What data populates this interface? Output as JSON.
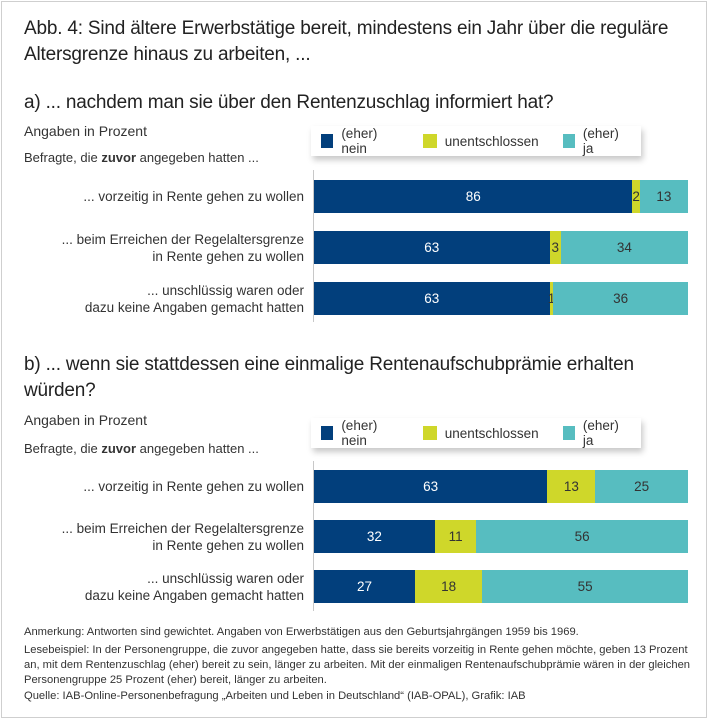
{
  "title": "Abb. 4: Sind ältere Erwerbstätige bereit, mindestens ein Jahr über die reguläre Altersgrenze hinaus zu arbeiten, ...",
  "colors": {
    "nein": "#023f7c",
    "unentschlossen": "#cfd72a",
    "ja": "#57bdc0",
    "label_on_dark": "#ffffff",
    "label_on_light": "#333333"
  },
  "legend": [
    "(eher) nein",
    "unentschlossen",
    "(eher) ja"
  ],
  "chart_data": [
    {
      "type": "bar",
      "orientation": "horizontal",
      "stacked": true,
      "title": "a) ... nachdem man sie über den Rentenzuschlag informiert hat?",
      "unit_label": "Angaben in Prozent",
      "group_prefix": "Befragte, die ",
      "group_bold": "zuvor",
      "group_suffix": " angegeben hatten ...",
      "categories": [
        "... vorzeitig in Rente gehen zu wollen",
        "... beim Erreichen der Regelaltersgrenze\nin Rente gehen zu wollen",
        "... unschlüssig waren oder\ndazu keine Angaben gemacht hatten"
      ],
      "series": [
        {
          "name": "(eher) nein",
          "values": [
            86,
            63,
            63
          ]
        },
        {
          "name": "unentschlossen",
          "values": [
            2,
            3,
            1
          ]
        },
        {
          "name": "(eher) ja",
          "values": [
            13,
            34,
            36
          ]
        }
      ],
      "xlim": [
        0,
        100
      ],
      "legend_position": "top-right",
      "grid": false
    },
    {
      "type": "bar",
      "orientation": "horizontal",
      "stacked": true,
      "title": "b) ... wenn sie stattdessen eine einmalige Rentenaufschubprämie erhalten würden?",
      "unit_label": "Angaben in Prozent",
      "group_prefix": "Befragte, die ",
      "group_bold": "zuvor",
      "group_suffix": " angegeben hatten ...",
      "categories": [
        "... vorzeitig in Rente gehen zu wollen",
        "... beim Erreichen der Regelaltersgrenze\nin Rente gehen zu wollen",
        "... unschlüssig waren oder\ndazu keine Angaben gemacht hatten"
      ],
      "series": [
        {
          "name": "(eher) nein",
          "values": [
            63,
            32,
            27
          ]
        },
        {
          "name": "unentschlossen",
          "values": [
            13,
            11,
            18
          ]
        },
        {
          "name": "(eher) ja",
          "values": [
            25,
            56,
            55
          ]
        }
      ],
      "xlim": [
        0,
        100
      ],
      "legend_position": "top-right",
      "grid": false
    }
  ],
  "notes": {
    "anmerkung": "Anmerkung: Antworten sind gewichtet. Angaben von Erwerbstätigen aus den Geburtsjahrgängen 1959 bis 1969.",
    "lesebeispiel": "Lesebeispiel: In der Personengruppe, die zuvor angegeben hatte, dass sie bereits vorzeitig in Rente gehen möchte, geben 13 Prozent an, mit dem Rentenzuschlag (eher) bereit zu sein, länger zu arbeiten. Mit der einmaligen Rentenaufschubprämie wären in der gleichen Personengruppe 25 Prozent (eher) bereit, länger zu arbeiten.",
    "quelle": "Quelle: IAB-Online-Personenbefragung „Arbeiten und Leben in Deutschland“ (IAB-OPAL), Grafik: IAB"
  }
}
